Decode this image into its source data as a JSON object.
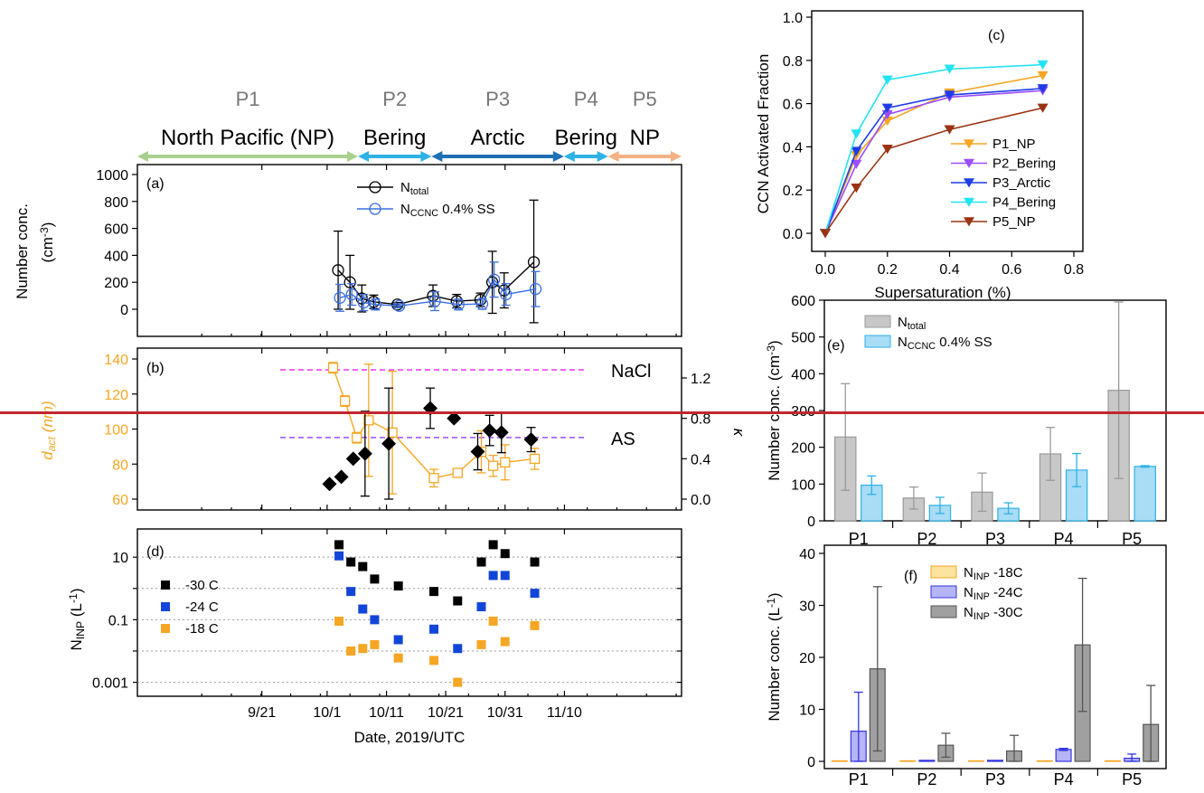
{
  "periods": {
    "labels": [
      "P1",
      "P2",
      "P3",
      "P4",
      "P5"
    ],
    "regions": [
      "North Pacific (NP)",
      "Bering",
      "Arctic",
      "Bering",
      "NP"
    ],
    "spans": [
      [
        9.0,
        10.2
      ],
      [
        10.2,
        10.6
      ],
      [
        10.6,
        11.32
      ],
      [
        11.32,
        11.56
      ],
      [
        11.56,
        11.96
      ]
    ],
    "colors": [
      "#a9d18e",
      "#2eb2e6",
      "#1f6fb5",
      "#2eb2e6",
      "#f4b183"
    ]
  },
  "date_ticks": [
    "9/21",
    "10/1",
    "10/11",
    "10/21",
    "10/31",
    "11/10"
  ],
  "date_xlabel": "Date, 2019/UTC",
  "chart_data": [
    {
      "id": "a",
      "panel_label": "(a)",
      "type": "line",
      "ylabel": "Number conc.",
      "yunit": "(cm",
      "yunit_exp": "-3",
      "ylim": [
        0,
        1000
      ],
      "yticks": [
        "0",
        "200",
        "400",
        "600",
        "800",
        "1000"
      ],
      "series": [
        {
          "name": "N",
          "name_sub": "total",
          "name_suffix": "",
          "color": "#000000",
          "x": [
            "2019-10-03",
            "2019-10-05",
            "2019-10-07",
            "2019-10-09",
            "2019-10-13",
            "2019-10-19",
            "2019-10-23",
            "2019-10-27",
            "2019-10-29",
            "2019-10-31",
            "2019-11-05"
          ],
          "y": [
            290,
            200,
            80,
            55,
            35,
            100,
            60,
            70,
            200,
            140,
            350
          ],
          "err": [
            290,
            200,
            100,
            50,
            15,
            80,
            50,
            50,
            230,
            130,
            460
          ]
        },
        {
          "name": "N",
          "name_sub": "CCNC",
          "name_suffix": "  0.4% SS",
          "color": "#3b6fe0",
          "x": [
            "2019-10-03",
            "2019-10-05",
            "2019-10-07",
            "2019-10-09",
            "2019-10-13",
            "2019-10-19",
            "2019-10-23",
            "2019-10-27",
            "2019-10-29",
            "2019-10-31",
            "2019-11-05"
          ],
          "y": [
            85,
            110,
            50,
            35,
            25,
            60,
            35,
            40,
            220,
            110,
            150
          ],
          "err": [
            100,
            80,
            60,
            40,
            15,
            70,
            40,
            40,
            130,
            80,
            130
          ]
        }
      ]
    },
    {
      "id": "b",
      "panel_label": "(b)",
      "type": "line",
      "ylabel": "d",
      "ylabel_sub": "act",
      "ylabel_suffix": " (nm)",
      "ylim": [
        60,
        140
      ],
      "yticks": [
        "60",
        "80",
        "100",
        "120",
        "140"
      ],
      "y2label": "κ",
      "y2lim": [
        0,
        1.4
      ],
      "y2ticks": [
        "0.0",
        "0.4",
        "0.8",
        "1.2"
      ],
      "reference_lines": [
        {
          "label": "NaCl",
          "kappa": 1.28,
          "color": "#ee44ee"
        },
        {
          "label": "AS",
          "kappa": 0.61,
          "color": "#9b4dff"
        }
      ],
      "series": [
        {
          "name": "d_act",
          "axis": "left",
          "color": "#f5a623",
          "x": [
            "2019-10-02",
            "2019-10-04",
            "2019-10-06",
            "2019-10-08",
            "2019-10-12",
            "2019-10-19",
            "2019-10-23",
            "2019-10-27",
            "2019-10-29",
            "2019-10-31",
            "2019-11-05"
          ],
          "y": [
            135,
            116,
            95,
            105,
            98,
            72,
            75,
            87,
            79,
            81,
            83
          ],
          "err": [
            3,
            3,
            3,
            32,
            35,
            5,
            2,
            12,
            6,
            10,
            6
          ]
        },
        {
          "name": "kappa",
          "axis": "right",
          "color": "#000000",
          "x": [
            "2019-10-02",
            "2019-10-04",
            "2019-10-06",
            "2019-10-08",
            "2019-10-12",
            "2019-10-19",
            "2019-10-23",
            "2019-10-27",
            "2019-10-29",
            "2019-10-31",
            "2019-11-05"
          ],
          "y": [
            0.15,
            0.22,
            0.4,
            0.45,
            0.55,
            0.9,
            0.8,
            0.47,
            0.68,
            0.66,
            0.59
          ],
          "err": [
            0,
            0,
            0,
            0.42,
            0.55,
            0.2,
            0,
            0.18,
            0.15,
            0.2,
            0.12
          ]
        }
      ]
    },
    {
      "id": "d",
      "panel_label": "(d)",
      "type": "scatter",
      "ylabel": "N",
      "ylabel_sub": "INP",
      "ylabel_suffix": " (L",
      "ylabel_exp": "-1",
      "yscale": "log",
      "ylim": [
        0.0005,
        50
      ],
      "yticks": [
        0.001,
        0.1,
        10
      ],
      "ytick_labels": [
        "0.001",
        "0.1",
        "10"
      ],
      "series": [
        {
          "name": "-30 C",
          "color": "#000000",
          "x": [
            "2019-10-03",
            "2019-10-05",
            "2019-10-07",
            "2019-10-09",
            "2019-10-13",
            "2019-10-19",
            "2019-10-23",
            "2019-10-27",
            "2019-10-29",
            "2019-10-31",
            "2019-11-05"
          ],
          "y": [
            25,
            7,
            5,
            2,
            1.2,
            0.8,
            0.4,
            7,
            25,
            13,
            7
          ]
        },
        {
          "name": "-24 C",
          "color": "#1246d8",
          "x": [
            "2019-10-03",
            "2019-10-05",
            "2019-10-07",
            "2019-10-09",
            "2019-10-13",
            "2019-10-19",
            "2019-10-23",
            "2019-10-27",
            "2019-10-29",
            "2019-10-31",
            "2019-11-05"
          ],
          "y": [
            11,
            0.8,
            0.22,
            0.1,
            0.023,
            0.05,
            0.012,
            0.26,
            2.6,
            2.6,
            0.7
          ]
        },
        {
          "name": "-18 C",
          "color": "#f5a623",
          "x": [
            "2019-10-03",
            "2019-10-05",
            "2019-10-07",
            "2019-10-09",
            "2019-10-13",
            "2019-10-19",
            "2019-10-23",
            "2019-10-27",
            "2019-10-29",
            "2019-10-31",
            "2019-11-05"
          ],
          "y": [
            0.09,
            0.01,
            0.012,
            0.016,
            0.006,
            0.005,
            0.001,
            0.016,
            0.09,
            0.02,
            0.065
          ]
        }
      ]
    },
    {
      "id": "c",
      "panel_label": "(c)",
      "type": "line",
      "xlabel": "Supersaturation (%)",
      "ylabel": "CCN Activated Fraction",
      "xlim": [
        0,
        0.8
      ],
      "ylim": [
        0,
        1.0
      ],
      "xticks": [
        "0.0",
        "0.2",
        "0.4",
        "0.6",
        "0.8"
      ],
      "yticks": [
        "0.0",
        "0.2",
        "0.4",
        "0.6",
        "0.8",
        "1.0"
      ],
      "x": [
        0,
        0.1,
        0.2,
        0.4,
        0.7
      ],
      "series": [
        {
          "name": "P1_NP",
          "color": "#f5a623",
          "y": [
            0,
            0.36,
            0.52,
            0.65,
            0.73
          ]
        },
        {
          "name": "P2_Bering",
          "color": "#9b4dff",
          "y": [
            0,
            0.32,
            0.55,
            0.63,
            0.66
          ]
        },
        {
          "name": "P3_Arctic",
          "color": "#1e3ce6",
          "y": [
            0,
            0.38,
            0.58,
            0.64,
            0.67
          ]
        },
        {
          "name": "P4_Bering",
          "color": "#22e3f2",
          "y": [
            0,
            0.46,
            0.71,
            0.76,
            0.78
          ]
        },
        {
          "name": "P5_NP",
          "color": "#9b3312",
          "y": [
            0,
            0.21,
            0.39,
            0.48,
            0.58
          ]
        }
      ]
    },
    {
      "id": "e",
      "panel_label": "(e)",
      "type": "bar",
      "ylabel": "Number conc. (cm",
      "ylabel_exp": "-3",
      "ylabel_close": ")",
      "ylim": [
        0,
        600
      ],
      "yticks": [
        "0",
        "100",
        "200",
        "300",
        "400",
        "500",
        "600"
      ],
      "categories": [
        "P1",
        "P2",
        "P3",
        "P4",
        "P5"
      ],
      "series": [
        {
          "name": "N",
          "name_sub": "total",
          "name_suffix": "",
          "color": "#c8c8c8",
          "stroke": "#9a9a9a",
          "values": [
            228,
            62,
            78,
            182,
            355
          ],
          "err": [
            145,
            30,
            52,
            72,
            240
          ]
        },
        {
          "name": "N",
          "name_sub": "CCNC",
          "name_suffix": " 0.4% SS",
          "color": "#a9dcf5",
          "stroke": "#2eb2e6",
          "values": [
            97,
            42,
            34,
            138,
            148
          ],
          "err": [
            25,
            22,
            15,
            45,
            2
          ]
        }
      ]
    },
    {
      "id": "f",
      "panel_label": "(f)",
      "type": "bar",
      "ylabel": "Number conc. (L",
      "ylabel_exp": "-1",
      "ylabel_close": ")",
      "ylim": [
        0,
        40
      ],
      "yticks": [
        "0",
        "10",
        "20",
        "30",
        "40"
      ],
      "categories": [
        "P1",
        "P2",
        "P3",
        "P4",
        "P5"
      ],
      "series": [
        {
          "name": "N",
          "name_sub": "INP",
          "name_suffix": " -18C",
          "color": "#fde3a0",
          "stroke": "#f5a623",
          "values": [
            0.1,
            0.1,
            0.1,
            0.1,
            0.1
          ],
          "err": [
            0,
            0,
            0,
            0,
            0
          ]
        },
        {
          "name": "N",
          "name_sub": "INP",
          "name_suffix": " -24C",
          "color": "#b5b5f7",
          "stroke": "#3434e0",
          "values": [
            5.8,
            0.2,
            0.2,
            2.3,
            0.6
          ],
          "err": [
            7.5,
            0,
            0,
            0.2,
            0.8
          ]
        },
        {
          "name": "N",
          "name_sub": "INP",
          "name_suffix": " -30C",
          "color": "#a0a0a0",
          "stroke": "#555555",
          "values": [
            17.8,
            3.1,
            2.0,
            22.4,
            7.1
          ],
          "err": [
            15.8,
            2.3,
            3.0,
            12.8,
            7.5
          ]
        }
      ]
    }
  ]
}
